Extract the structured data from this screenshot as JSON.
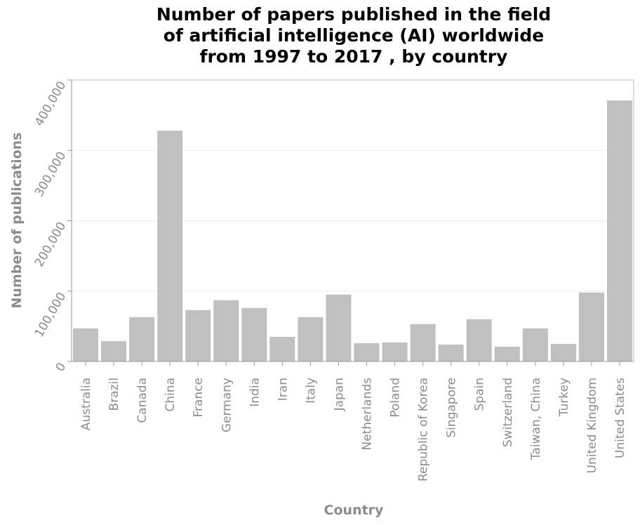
{
  "chart_data": {
    "type": "bar",
    "title_lines": [
      "Number of papers published in the field",
      "of artificial intelligence (AI) worldwide",
      "from 1997 to 2017 , by country"
    ],
    "xlabel": "Country",
    "ylabel": "Number of publications",
    "ylim": [
      0,
      400000
    ],
    "yticks": [
      0,
      100000,
      200000,
      300000,
      400000
    ],
    "ytick_labels": [
      "0",
      "100,000",
      "200,000",
      "300,000",
      "400,000"
    ],
    "grid": true,
    "bar_color": "#c0c0c0",
    "categories": [
      "Australia",
      "Brazil",
      "Canada",
      "China",
      "France",
      "Germany",
      "India",
      "Iran",
      "Italy",
      "Japan",
      "Netherlands",
      "Poland",
      "Republic of Korea",
      "Singapore",
      "Spain",
      "Switzerland",
      "Taiwan, China",
      "Turkey",
      "United Kingdom",
      "United States"
    ],
    "values": [
      47000,
      29000,
      63000,
      328000,
      73000,
      87000,
      76000,
      35000,
      63000,
      95000,
      26000,
      27000,
      53000,
      24000,
      60000,
      21000,
      47000,
      25000,
      98000,
      371000
    ]
  }
}
